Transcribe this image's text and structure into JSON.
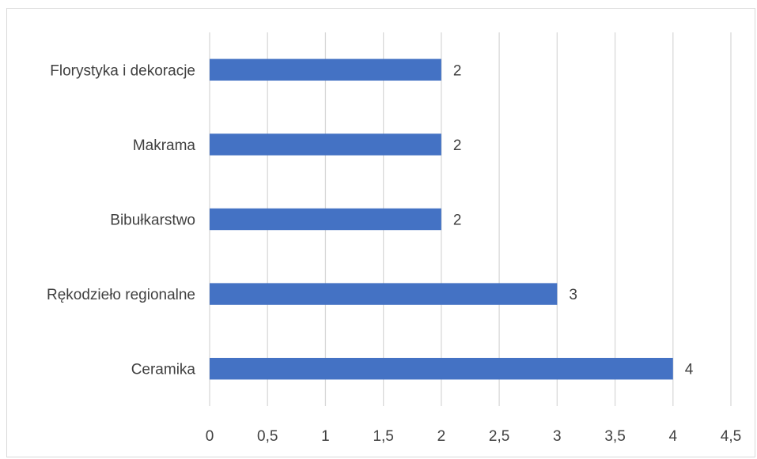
{
  "chart_data": {
    "type": "bar",
    "orientation": "horizontal",
    "categories": [
      "Florystyka i dekoracje",
      "Makrama",
      "Bibułkarstwo",
      "Rękodzieło regionalne",
      "Ceramika"
    ],
    "values": [
      2,
      2,
      2,
      3,
      4
    ],
    "data_labels": [
      "2",
      "2",
      "2",
      "3",
      "4"
    ],
    "xlim": [
      0,
      4.5
    ],
    "x_ticks": [
      "0",
      "0,5",
      "1",
      "1,5",
      "2",
      "2,5",
      "3",
      "3,5",
      "4",
      "4,5"
    ],
    "grid": "vertical",
    "legend": "none",
    "bar_color": "#4472C4",
    "title": "",
    "xlabel": "",
    "ylabel": ""
  }
}
